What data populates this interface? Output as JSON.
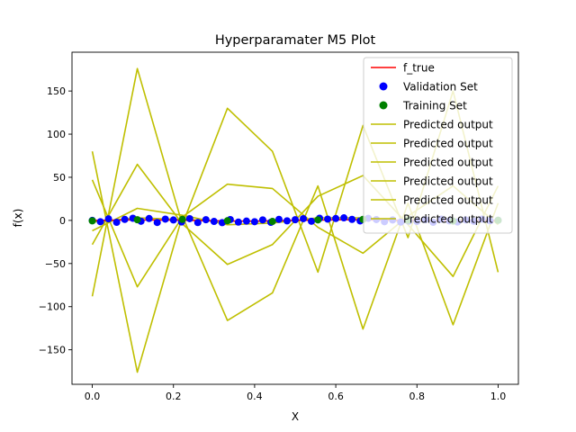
{
  "chart_data": {
    "type": "line",
    "title": "Hyperparamater M5 Plot",
    "xlabel": "X",
    "ylabel": "f(x)",
    "xlim": [
      -0.05,
      1.05
    ],
    "ylim": [
      -190,
      195
    ],
    "x_ticks": [
      0.0,
      0.2,
      0.4,
      0.6,
      0.8,
      1.0
    ],
    "x_tick_labels": [
      "0.0",
      "0.2",
      "0.4",
      "0.6",
      "0.8",
      "1.0"
    ],
    "y_ticks": [
      -150,
      -100,
      -50,
      0,
      50,
      100,
      150
    ],
    "y_tick_labels": [
      "−150",
      "−100",
      "−50",
      "0",
      "50",
      "100",
      "150"
    ],
    "grid": false,
    "legend_position": "top-right",
    "legend": [
      {
        "label": "f_true",
        "kind": "line",
        "color": "#ff0000"
      },
      {
        "label": "Validation Set",
        "kind": "marker",
        "color": "#0000ff"
      },
      {
        "label": "Training Set",
        "kind": "marker",
        "color": "#008000"
      },
      {
        "label": "Predicted output",
        "kind": "line",
        "color": "#bfbf00"
      },
      {
        "label": "Predicted output",
        "kind": "line",
        "color": "#bfbf00"
      },
      {
        "label": "Predicted output",
        "kind": "line",
        "color": "#bfbf00"
      },
      {
        "label": "Predicted output",
        "kind": "line",
        "color": "#bfbf00"
      },
      {
        "label": "Predicted output",
        "kind": "line",
        "color": "#bfbf00"
      },
      {
        "label": "Predicted output",
        "kind": "line",
        "color": "#bfbf00"
      }
    ],
    "series": [
      {
        "name": "f_true",
        "kind": "line",
        "color": "#ff0000",
        "x": [
          0.0,
          0.1,
          0.2,
          0.3,
          0.4,
          0.5,
          0.6,
          0.7,
          0.8,
          0.9,
          1.0
        ],
        "y": [
          0,
          0.5,
          0.3,
          -0.5,
          -0.8,
          0,
          0.8,
          0.5,
          -0.3,
          -0.5,
          0
        ]
      },
      {
        "name": "Validation Set",
        "kind": "scatter",
        "color": "#0000ff",
        "x": [
          0.0,
          0.02,
          0.04,
          0.06,
          0.08,
          0.1,
          0.12,
          0.14,
          0.16,
          0.18,
          0.2,
          0.22,
          0.24,
          0.26,
          0.28,
          0.3,
          0.32,
          0.34,
          0.36,
          0.38,
          0.4,
          0.42,
          0.44,
          0.46,
          0.48,
          0.5,
          0.52,
          0.54,
          0.56,
          0.58,
          0.6,
          0.62,
          0.64,
          0.66,
          0.68,
          0.7,
          0.72,
          0.74,
          0.76,
          0.78,
          0.8,
          0.82,
          0.84,
          0.86,
          0.88,
          0.9,
          0.92,
          0.94,
          0.96,
          0.98,
          1.0
        ],
        "y": [
          0,
          -1.5,
          1.8,
          -2.2,
          1.2,
          2.5,
          -1.0,
          2.2,
          -2.4,
          1.5,
          0.5,
          -1.8,
          2.0,
          -2.5,
          0.8,
          -1.2,
          -2.6,
          1.0,
          -2.0,
          -0.8,
          -1.5,
          0.6,
          -2.2,
          1.2,
          -0.5,
          0.8,
          2.0,
          -1.0,
          2.5,
          1.5,
          2.2,
          3.0,
          1.2,
          -0.6,
          2.4,
          1.0,
          -1.5,
          0.5,
          -2.0,
          -0.8,
          -1.2,
          0.8,
          -2.2,
          1.4,
          -0.5,
          -1.8,
          0.6,
          -1.0,
          1.5,
          -0.4,
          0.2
        ]
      },
      {
        "name": "Training Set",
        "kind": "scatter",
        "color": "#008000",
        "x": [
          0.0,
          0.111,
          0.222,
          0.333,
          0.444,
          0.556,
          0.667,
          0.778,
          0.889,
          1.0
        ],
        "y": [
          -0.5,
          0.8,
          1.2,
          -0.4,
          -1.2,
          0.6,
          1.2,
          0.2,
          -0.8,
          0.1
        ]
      },
      {
        "name": "Predicted output",
        "kind": "line",
        "color": "#bfbf00",
        "x": [
          0.0,
          0.111,
          0.222,
          0.333,
          0.444,
          0.556,
          0.667,
          0.778,
          0.889,
          1.0
        ],
        "y": [
          -88,
          176,
          -5,
          130,
          80,
          -60,
          110,
          -20,
          150,
          -60
        ]
      },
      {
        "name": "Predicted output",
        "kind": "line",
        "color": "#bfbf00",
        "x": [
          0.0,
          0.111,
          0.222,
          0.333,
          0.444,
          0.556,
          0.667,
          0.778,
          0.889,
          1.0
        ],
        "y": [
          80,
          -176,
          5,
          -116,
          -84,
          40,
          -126,
          20,
          -121,
          20
        ]
      },
      {
        "name": "Predicted output",
        "kind": "line",
        "color": "#bfbf00",
        "x": [
          0.0,
          0.111,
          0.222,
          0.333,
          0.444,
          0.556,
          0.667,
          0.778,
          0.889,
          1.0
        ],
        "y": [
          47,
          -77,
          4,
          42,
          37,
          -8,
          -38,
          5,
          40,
          -5
        ]
      },
      {
        "name": "Predicted output",
        "kind": "line",
        "color": "#bfbf00",
        "x": [
          0.0,
          0.111,
          0.222,
          0.333,
          0.444,
          0.556,
          0.667,
          0.778,
          0.889,
          1.0
        ],
        "y": [
          -28,
          65,
          -4,
          -51,
          -28,
          28,
          52,
          -5,
          -65,
          40
        ]
      },
      {
        "name": "Predicted output",
        "kind": "line",
        "color": "#bfbf00",
        "x": [
          0.0,
          0.111,
          0.222,
          0.333,
          0.444,
          0.556,
          0.667,
          0.778,
          0.889,
          1.0
        ],
        "y": [
          -12,
          14,
          6,
          -5,
          -3,
          3,
          3,
          -2,
          1,
          0
        ]
      },
      {
        "name": "Predicted output",
        "kind": "line",
        "color": "#bfbf00",
        "x": [
          0.0,
          0.111,
          0.222,
          0.333,
          0.444,
          0.556,
          0.667,
          0.778,
          0.889,
          1.0
        ],
        "y": [
          -2,
          3,
          1,
          -1,
          -1,
          0.5,
          1,
          0,
          -0.5,
          0
        ]
      }
    ]
  }
}
